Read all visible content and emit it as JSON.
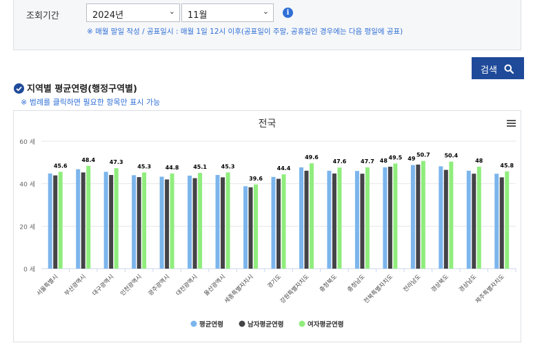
{
  "filter": {
    "label": "조회기간",
    "year_value": "2024년",
    "month_value": "11월",
    "notice": "※ 매월 말일 작성 / 공표일시 : 매월 1일 12시 이후(공표일이 주말, 공휴일인 경우에는 다음 평일에 공표)"
  },
  "search_label": "검색",
  "section_title": "지역별 평균연령(행정구역별)",
  "hint": "※ 범례를 클릭하면 필요한 항목만 표시 가능",
  "icons": {
    "info": "info-icon",
    "check": "check-circle-icon",
    "search": "search-icon",
    "menu": "hamburger-menu-icon",
    "chevron": "chevron-down-icon"
  },
  "colors": {
    "avg": "#7cb5ec",
    "male": "#434348",
    "female": "#90ed7d",
    "button": "#1f4a9a"
  },
  "chart_data": {
    "type": "bar",
    "title": "전국",
    "ylim": [
      0,
      60
    ],
    "yticks": [
      0,
      20,
      40,
      60
    ],
    "ytick_labels": [
      "0 세",
      "20 세",
      "40 세",
      "60 세"
    ],
    "grid": true,
    "legend_position": "bottom",
    "categories": [
      "서울특별시",
      "부산광역시",
      "대구광역시",
      "인천광역시",
      "광주광역시",
      "대전광역시",
      "울산광역시",
      "세종특별자치시",
      "경기도",
      "강원특별자치도",
      "충청북도",
      "충청남도",
      "전북특별자치도",
      "전라남도",
      "경상북도",
      "경상남도",
      "제주특별자치도"
    ],
    "series": [
      {
        "name": "평균연령",
        "values": [
          44.8,
          46.8,
          45.6,
          44.0,
          43.3,
          43.8,
          44.1,
          38.8,
          43.2,
          47.7,
          46.1,
          46.0,
          47.7,
          48.8,
          48.2,
          46.1,
          44.7
        ]
      },
      {
        "name": "남자평균연령",
        "values": [
          43.9,
          45.3,
          44.1,
          43.1,
          42.0,
          42.6,
          43.0,
          38.3,
          42.3,
          46.1,
          44.8,
          44.7,
          48,
          49,
          46.5,
          44.7,
          43.0
        ]
      },
      {
        "name": "여자평균연령",
        "values": [
          45.6,
          48.4,
          47.3,
          45.3,
          44.8,
          45.1,
          45.3,
          39.6,
          44.4,
          49.6,
          47.6,
          47.7,
          49.5,
          50.7,
          50.4,
          48,
          45.8
        ]
      }
    ]
  }
}
